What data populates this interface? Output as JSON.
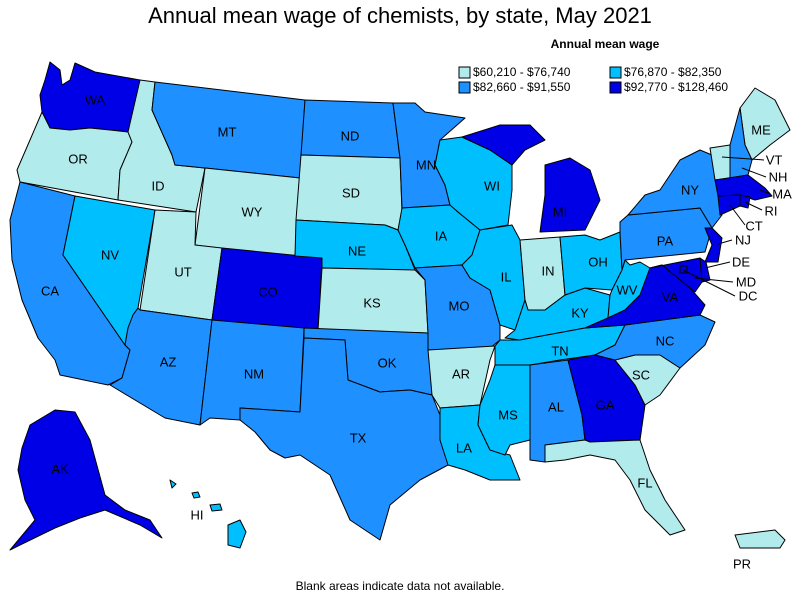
{
  "title": "Annual mean wage of chemists, by state, May 2021",
  "footnote": "Blank areas indicate data not available.",
  "legend": {
    "title": "Annual mean wage",
    "bins": [
      {
        "label": "$60,210 - $76,740",
        "color": "#b2ebec"
      },
      {
        "label": "$76,870 - $82,350",
        "color": "#00bfff"
      },
      {
        "label": "$82,660 - $91,550",
        "color": "#1e90ff"
      },
      {
        "label": "$92,770 - $128,460",
        "color": "#0000e6"
      }
    ]
  },
  "states": {
    "WA": 3,
    "OR": 0,
    "CA": 2,
    "ID": 0,
    "NV": 1,
    "MT": 2,
    "WY": 0,
    "UT": 0,
    "AZ": 2,
    "CO": 3,
    "NM": 2,
    "ND": 2,
    "SD": 0,
    "NE": 1,
    "KS": 0,
    "OK": 2,
    "TX": 2,
    "MN": 2,
    "IA": 1,
    "MO": 2,
    "AR": 0,
    "LA": 1,
    "WI": 1,
    "IL": 1,
    "MS": 1,
    "MI": 3,
    "IN": 0,
    "KY": 1,
    "TN": 1,
    "AL": 2,
    "OH": 1,
    "WV": 1,
    "GA": 3,
    "FL": 0,
    "SC": 0,
    "NC": 2,
    "VA": 3,
    "PA": 2,
    "NY": 2,
    "ME": 0,
    "VT": 0,
    "NH": 2,
    "MA": 3,
    "RI": 3,
    "CT": 3,
    "NJ": 3,
    "DE": 3,
    "MD": 3,
    "DC": 3,
    "AK": 3,
    "HI": 1,
    "PR": 0
  }
}
